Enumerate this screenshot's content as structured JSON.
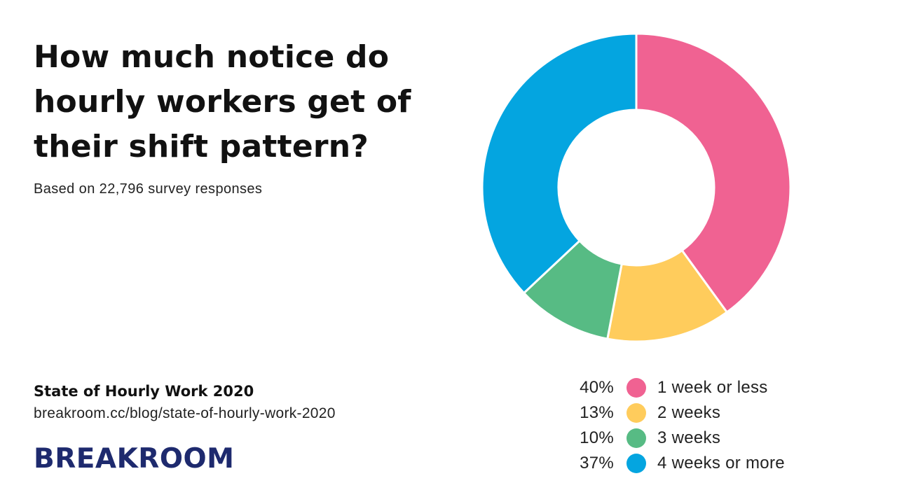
{
  "header": {
    "title": "How much notice do hourly workers get of their shift pattern?",
    "subtitle": "Based on 22,796 survey responses"
  },
  "footer": {
    "source_title": "State of Hourly Work 2020",
    "source_url": "breakroom.cc/blog/state-of-hourly-work-2020",
    "brand": "BREAKROOM"
  },
  "chart_data": {
    "type": "pie",
    "donut": true,
    "title": "How much notice do hourly workers get of their shift pattern?",
    "subtitle": "Based on 22,796 survey responses",
    "legend_position": "bottom-right",
    "slices": [
      {
        "label": "1 week or less",
        "value": 40,
        "display": "40%",
        "color": "#f06292"
      },
      {
        "label": "2 weeks",
        "value": 13,
        "display": "13%",
        "color": "#ffcc5c"
      },
      {
        "label": "3 weeks",
        "value": 10,
        "display": "10%",
        "color": "#57bb84"
      },
      {
        "label": "4 weeks or more",
        "value": 37,
        "display": "37%",
        "color": "#04a5e0"
      }
    ]
  }
}
